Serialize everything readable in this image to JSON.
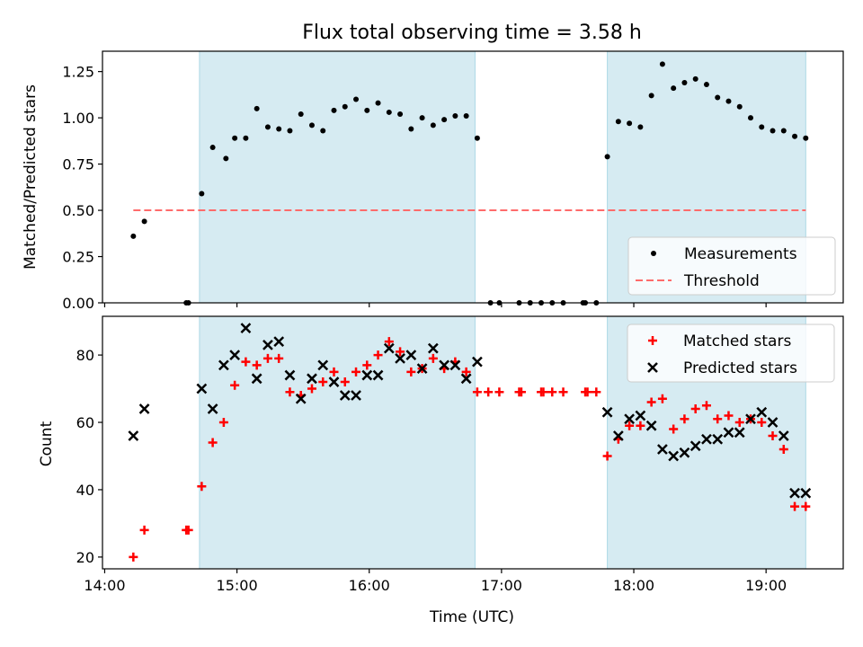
{
  "figure": {
    "title": "Flux total observing time = 3.58 h",
    "xlabel": "Time (UTC)"
  },
  "colors": {
    "band": "#add8e6",
    "measurement": "#000000",
    "threshold": "#ff6b6b",
    "matched": "#ff0000",
    "predicted": "#000000"
  },
  "chart_data": [
    {
      "type": "scatter",
      "panel": "top",
      "title": "Flux total observing time = 3.58 h",
      "xlabel": "",
      "ylabel": "Matched/Predicted stars",
      "xlim": [
        "13:59",
        "19:35"
      ],
      "ylim": [
        0,
        1.36
      ],
      "xticks": [
        "14:00",
        "15:00",
        "16:00",
        "17:00",
        "18:00",
        "19:00"
      ],
      "yticks": [
        0.0,
        0.25,
        0.5,
        0.75,
        1.0,
        1.25
      ],
      "ytick_labels": [
        "0.00",
        "0.25",
        "0.50",
        "0.75",
        "1.00",
        "1.25"
      ],
      "shaded_intervals": [
        [
          "14:43",
          "16:48"
        ],
        [
          "17:48",
          "19:18"
        ]
      ],
      "legend": {
        "placement": "lower right",
        "entries": [
          "Measurements",
          "Threshold"
        ]
      },
      "threshold": {
        "name": "Threshold",
        "y": 0.5,
        "x_range": [
          "14:13",
          "19:18"
        ],
        "style": "dashed"
      },
      "series": [
        {
          "name": "Measurements",
          "marker": "dot",
          "points": [
            [
              "14:13",
              0.36
            ],
            [
              "14:18",
              0.44
            ],
            [
              "14:37",
              0.0
            ],
            [
              "14:38",
              0.0
            ],
            [
              "14:44",
              0.59
            ],
            [
              "14:49",
              0.84
            ],
            [
              "14:55",
              0.78
            ],
            [
              "14:59",
              0.89
            ],
            [
              "15:04",
              0.89
            ],
            [
              "15:09",
              1.05
            ],
            [
              "15:14",
              0.95
            ],
            [
              "15:19",
              0.94
            ],
            [
              "15:24",
              0.93
            ],
            [
              "15:29",
              1.02
            ],
            [
              "15:34",
              0.96
            ],
            [
              "15:39",
              0.93
            ],
            [
              "15:44",
              1.04
            ],
            [
              "15:49",
              1.06
            ],
            [
              "15:54",
              1.1
            ],
            [
              "15:59",
              1.04
            ],
            [
              "16:04",
              1.08
            ],
            [
              "16:09",
              1.03
            ],
            [
              "16:14",
              1.02
            ],
            [
              "16:19",
              0.94
            ],
            [
              "16:24",
              1.0
            ],
            [
              "16:29",
              0.96
            ],
            [
              "16:34",
              0.99
            ],
            [
              "16:39",
              1.01
            ],
            [
              "16:44",
              1.01
            ],
            [
              "16:49",
              0.89
            ],
            [
              "16:55",
              0.0
            ],
            [
              "16:59",
              0.0
            ],
            [
              "17:08",
              0.0
            ],
            [
              "17:13",
              0.0
            ],
            [
              "17:18",
              0.0
            ],
            [
              "17:23",
              0.0
            ],
            [
              "17:28",
              0.0
            ],
            [
              "17:37",
              0.0
            ],
            [
              "17:38",
              0.0
            ],
            [
              "17:43",
              0.0
            ],
            [
              "17:48",
              0.79
            ],
            [
              "17:53",
              0.98
            ],
            [
              "17:58",
              0.97
            ],
            [
              "18:03",
              0.95
            ],
            [
              "18:08",
              1.12
            ],
            [
              "18:13",
              1.29
            ],
            [
              "18:18",
              1.16
            ],
            [
              "18:23",
              1.19
            ],
            [
              "18:28",
              1.21
            ],
            [
              "18:33",
              1.18
            ],
            [
              "18:38",
              1.11
            ],
            [
              "18:43",
              1.09
            ],
            [
              "18:48",
              1.06
            ],
            [
              "18:53",
              1.0
            ],
            [
              "18:58",
              0.95
            ],
            [
              "19:03",
              0.93
            ],
            [
              "19:08",
              0.93
            ],
            [
              "19:13",
              0.9
            ],
            [
              "19:18",
              0.89
            ]
          ]
        }
      ]
    },
    {
      "type": "scatter",
      "panel": "bottom",
      "xlabel": "Time (UTC)",
      "ylabel": "Count",
      "xlim": [
        "13:59",
        "19:35"
      ],
      "ylim": [
        16.5,
        91.5
      ],
      "xticks": [
        "14:00",
        "15:00",
        "16:00",
        "17:00",
        "18:00",
        "19:00"
      ],
      "yticks": [
        20,
        40,
        60,
        80
      ],
      "shaded_intervals": [
        [
          "14:43",
          "16:48"
        ],
        [
          "17:48",
          "19:18"
        ]
      ],
      "legend": {
        "placement": "upper right",
        "entries": [
          "Matched stars",
          "Predicted stars"
        ]
      },
      "series": [
        {
          "name": "Matched stars",
          "marker": "plus",
          "points": [
            [
              "14:13",
              20
            ],
            [
              "14:18",
              28
            ],
            [
              "14:37",
              28
            ],
            [
              "14:38",
              28
            ],
            [
              "14:44",
              41
            ],
            [
              "14:49",
              54
            ],
            [
              "14:54",
              60
            ],
            [
              "14:59",
              71
            ],
            [
              "15:04",
              78
            ],
            [
              "15:09",
              77
            ],
            [
              "15:14",
              79
            ],
            [
              "15:19",
              79
            ],
            [
              "15:24",
              69
            ],
            [
              "15:29",
              68
            ],
            [
              "15:34",
              70
            ],
            [
              "15:39",
              72
            ],
            [
              "15:44",
              75
            ],
            [
              "15:49",
              72
            ],
            [
              "15:54",
              75
            ],
            [
              "15:59",
              77
            ],
            [
              "16:04",
              80
            ],
            [
              "16:09",
              84
            ],
            [
              "16:14",
              81
            ],
            [
              "16:19",
              75
            ],
            [
              "16:24",
              76
            ],
            [
              "16:29",
              79
            ],
            [
              "16:34",
              76
            ],
            [
              "16:39",
              78
            ],
            [
              "16:44",
              75
            ],
            [
              "16:49",
              69
            ],
            [
              "16:54",
              69
            ],
            [
              "16:59",
              69
            ],
            [
              "17:08",
              69
            ],
            [
              "17:09",
              69
            ],
            [
              "17:18",
              69
            ],
            [
              "17:19",
              69
            ],
            [
              "17:23",
              69
            ],
            [
              "17:28",
              69
            ],
            [
              "17:38",
              69
            ],
            [
              "17:39",
              69
            ],
            [
              "17:43",
              69
            ],
            [
              "17:48",
              50
            ],
            [
              "17:53",
              55
            ],
            [
              "17:58",
              59
            ],
            [
              "18:03",
              59
            ],
            [
              "18:08",
              66
            ],
            [
              "18:13",
              67
            ],
            [
              "18:18",
              58
            ],
            [
              "18:23",
              61
            ],
            [
              "18:28",
              64
            ],
            [
              "18:33",
              65
            ],
            [
              "18:38",
              61
            ],
            [
              "18:43",
              62
            ],
            [
              "18:48",
              60
            ],
            [
              "18:53",
              61
            ],
            [
              "18:58",
              60
            ],
            [
              "19:03",
              56
            ],
            [
              "19:08",
              52
            ],
            [
              "19:13",
              35
            ],
            [
              "19:18",
              35
            ]
          ]
        },
        {
          "name": "Predicted stars",
          "marker": "x",
          "points": [
            [
              "14:13",
              56
            ],
            [
              "14:18",
              64
            ],
            [
              "14:44",
              70
            ],
            [
              "14:49",
              64
            ],
            [
              "14:54",
              77
            ],
            [
              "14:59",
              80
            ],
            [
              "15:04",
              88
            ],
            [
              "15:09",
              73
            ],
            [
              "15:14",
              83
            ],
            [
              "15:19",
              84
            ],
            [
              "15:24",
              74
            ],
            [
              "15:29",
              67
            ],
            [
              "15:34",
              73
            ],
            [
              "15:39",
              77
            ],
            [
              "15:44",
              72
            ],
            [
              "15:49",
              68
            ],
            [
              "15:54",
              68
            ],
            [
              "15:59",
              74
            ],
            [
              "16:04",
              74
            ],
            [
              "16:09",
              82
            ],
            [
              "16:14",
              79
            ],
            [
              "16:19",
              80
            ],
            [
              "16:24",
              76
            ],
            [
              "16:29",
              82
            ],
            [
              "16:34",
              77
            ],
            [
              "16:39",
              77
            ],
            [
              "16:44",
              73
            ],
            [
              "16:49",
              78
            ],
            [
              "17:48",
              63
            ],
            [
              "17:53",
              56
            ],
            [
              "17:58",
              61
            ],
            [
              "18:03",
              62
            ],
            [
              "18:08",
              59
            ],
            [
              "18:13",
              52
            ],
            [
              "18:18",
              50
            ],
            [
              "18:23",
              51
            ],
            [
              "18:28",
              53
            ],
            [
              "18:33",
              55
            ],
            [
              "18:38",
              55
            ],
            [
              "18:43",
              57
            ],
            [
              "18:48",
              57
            ],
            [
              "18:53",
              61
            ],
            [
              "18:58",
              63
            ],
            [
              "19:03",
              60
            ],
            [
              "19:08",
              56
            ],
            [
              "19:13",
              39
            ],
            [
              "19:18",
              39
            ]
          ]
        }
      ]
    }
  ]
}
